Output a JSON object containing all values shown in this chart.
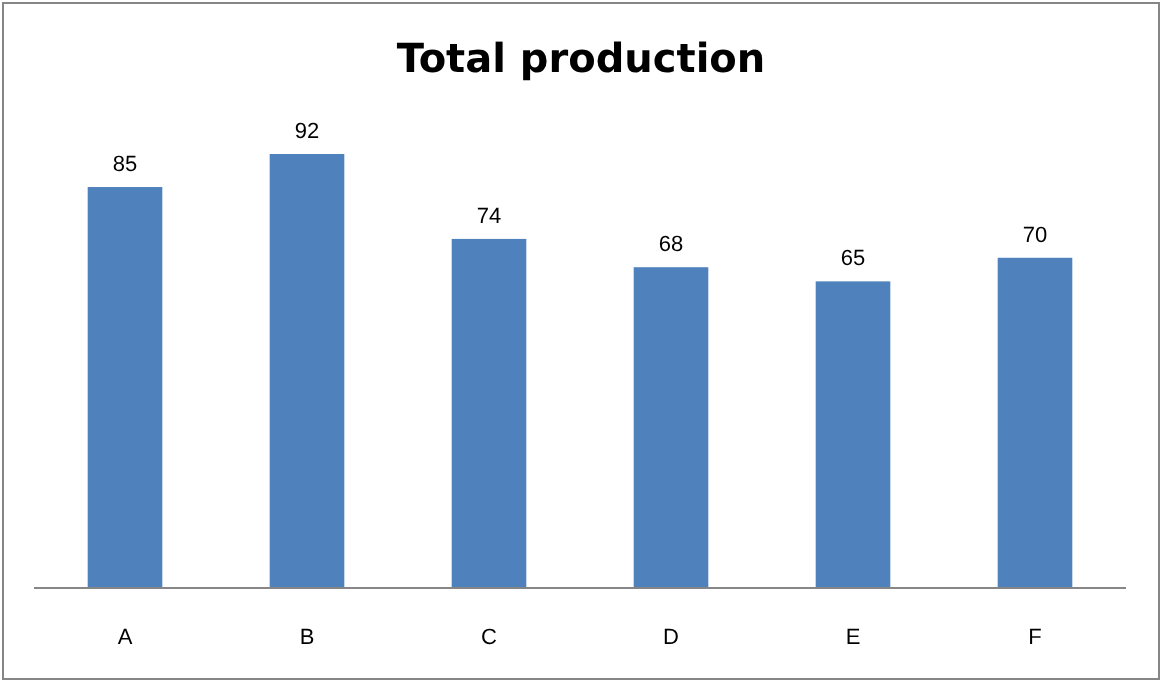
{
  "chart_data": {
    "type": "bar",
    "title": "Total production",
    "categories": [
      "A",
      "B",
      "C",
      "D",
      "E",
      "F"
    ],
    "values": [
      85,
      92,
      74,
      68,
      65,
      70
    ],
    "color": "#4f81bd",
    "data_labels": true,
    "tick_labels": "x"
  }
}
